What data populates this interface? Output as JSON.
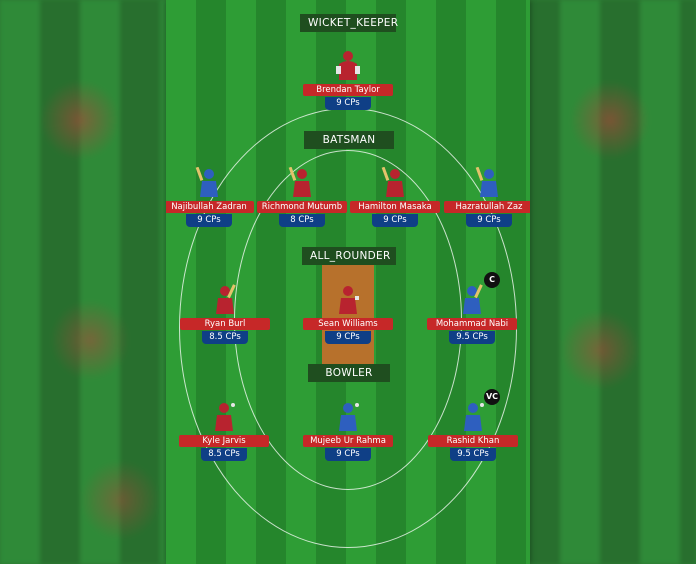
{
  "sections": {
    "wicket_keeper": "WICKET_KEEPER",
    "batsman": "BATSMAN",
    "all_rounder": "ALL_ROUNDER",
    "bowler": "BOWLER"
  },
  "players": {
    "brendan": {
      "name": "Brendan Taylor",
      "cps": "9 CPs"
    },
    "najibullah": {
      "name": "Najibullah Zadran",
      "cps": "9 CPs"
    },
    "richmond": {
      "name": "Richmond Mutumb",
      "cps": "8 CPs"
    },
    "hamilton": {
      "name": "Hamilton Masaka",
      "cps": "9 CPs"
    },
    "hazratullah": {
      "name": "Hazratullah Zaz",
      "cps": "9 CPs"
    },
    "ryan": {
      "name": "Ryan Burl",
      "cps": "8.5 CPs"
    },
    "sean": {
      "name": "Sean Williams",
      "cps": "9 CPs"
    },
    "nabi": {
      "name": "Mohammad Nabi",
      "cps": "9.5 CPs"
    },
    "kyle": {
      "name": "Kyle Jarvis",
      "cps": "8.5 CPs"
    },
    "mujeeb": {
      "name": "Mujeeb Ur Rahma",
      "cps": "9 CPs"
    },
    "rashid": {
      "name": "Rashid Khan",
      "cps": "9.5 CPs"
    }
  },
  "badges": {
    "captain": "C",
    "vice_captain": "VC"
  },
  "colors": {
    "zimbabwe_kit": "#b8232f",
    "afghanistan_kit": "#2e5fbf",
    "name_tag": "#c62828",
    "cps_tag": "#0f3f86",
    "pitch": "#b7712c"
  }
}
